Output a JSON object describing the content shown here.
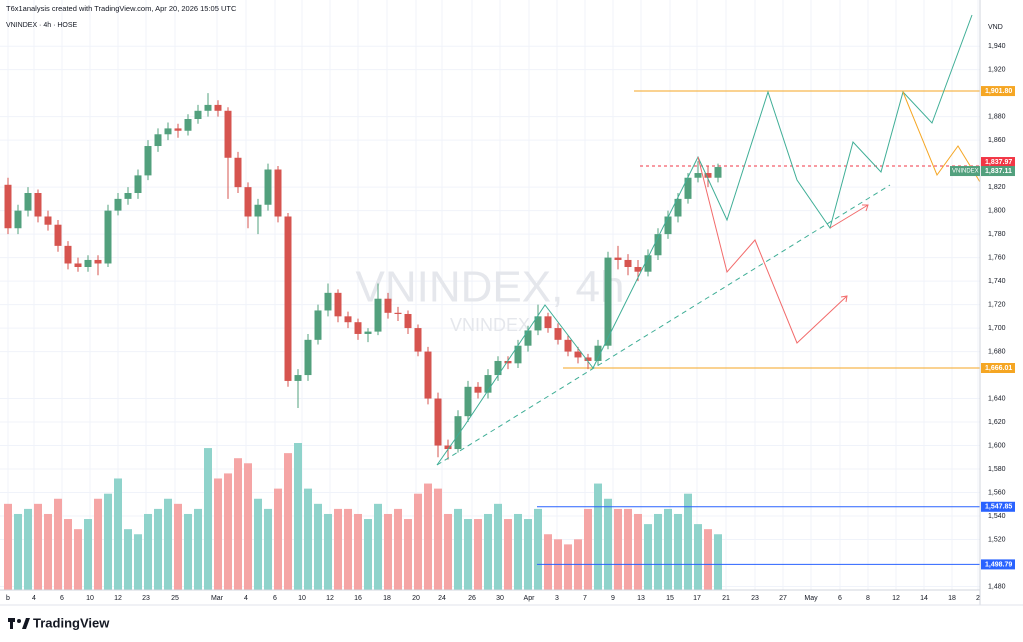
{
  "chart_data": {
    "type": "candlestick",
    "credit": "T6x1analysis created with TradingView.com, Apr 20, 2026 15:05 UTC",
    "title": "VNINDEX · 4h · HOSE",
    "watermark": "VNINDEX, 4h",
    "watermark_symbol": "VNINDEX",
    "y_unit": "VND",
    "brand": "TradingView",
    "up_color": "#52a07d",
    "down_color": "#d6544f",
    "volume_up_color": "#8fd3cb",
    "volume_down_color": "#f5a5a5",
    "grid": true,
    "xlim": [
      -0.8,
      97.2
    ],
    "ylim": [
      1477,
      1964
    ],
    "xticks": [
      {
        "value": 0,
        "label": "b"
      },
      {
        "value": 2.6,
        "label": "4"
      },
      {
        "value": 5.4,
        "label": "6"
      },
      {
        "value": 8.2,
        "label": "10"
      },
      {
        "value": 11,
        "label": "12"
      },
      {
        "value": 13.8,
        "label": "23"
      },
      {
        "value": 16.7,
        "label": "25"
      },
      {
        "value": 20.9,
        "label": "Mar"
      },
      {
        "value": 23.8,
        "label": "4"
      },
      {
        "value": 26.7,
        "label": "6"
      },
      {
        "value": 29.4,
        "label": "10"
      },
      {
        "value": 32.2,
        "label": "12"
      },
      {
        "value": 35,
        "label": "16"
      },
      {
        "value": 37.9,
        "label": "18"
      },
      {
        "value": 40.8,
        "label": "20"
      },
      {
        "value": 43.4,
        "label": "24"
      },
      {
        "value": 46.4,
        "label": "26"
      },
      {
        "value": 49.2,
        "label": "30"
      },
      {
        "value": 52.1,
        "label": "Apr"
      },
      {
        "value": 54.9,
        "label": "3"
      },
      {
        "value": 57.7,
        "label": "7"
      },
      {
        "value": 60.5,
        "label": "9"
      },
      {
        "value": 63.3,
        "label": "13"
      },
      {
        "value": 66.2,
        "label": "15"
      },
      {
        "value": 68.9,
        "label": "17"
      },
      {
        "value": 71.8,
        "label": "21"
      },
      {
        "value": 74.7,
        "label": "23"
      },
      {
        "value": 77.5,
        "label": "27"
      },
      {
        "value": 80.3,
        "label": "May"
      },
      {
        "value": 83.2,
        "label": "6"
      },
      {
        "value": 86,
        "label": "8"
      },
      {
        "value": 88.8,
        "label": "12"
      },
      {
        "value": 91.6,
        "label": "14"
      },
      {
        "value": 94.4,
        "label": "18"
      },
      {
        "value": 97,
        "label": "2"
      }
    ],
    "yticks": [
      {
        "value": 1480,
        "label": "1,480"
      },
      {
        "value": 1520,
        "label": "1,520"
      },
      {
        "value": 1540,
        "label": "1,540"
      },
      {
        "value": 1560,
        "label": "1,560"
      },
      {
        "value": 1580,
        "label": "1,580"
      },
      {
        "value": 1600,
        "label": "1,600"
      },
      {
        "value": 1620,
        "label": "1,620"
      },
      {
        "value": 1640,
        "label": "1,640"
      },
      {
        "value": 1680,
        "label": "1,680"
      },
      {
        "value": 1700,
        "label": "1,700"
      },
      {
        "value": 1720,
        "label": "1,720"
      },
      {
        "value": 1740,
        "label": "1,740"
      },
      {
        "value": 1760,
        "label": "1,760"
      },
      {
        "value": 1780,
        "label": "1,780"
      },
      {
        "value": 1800,
        "label": "1,800"
      },
      {
        "value": 1820,
        "label": "1,820"
      },
      {
        "value": 1860,
        "label": "1,860"
      },
      {
        "value": 1880,
        "label": "1,880"
      },
      {
        "value": 1920,
        "label": "1,920"
      },
      {
        "value": 1940,
        "label": "1,940"
      }
    ],
    "levels": [
      {
        "value": 1901.8,
        "label": "1,901.80",
        "color": "#f5a623"
      },
      {
        "value": 1837.97,
        "label": "1,837.97",
        "color": "#f23645"
      },
      {
        "value": 1837.11,
        "label": "1,837.11",
        "color": "#52a07d",
        "name": "VNINDEX"
      },
      {
        "value": 1666.01,
        "label": "1,666.01",
        "color": "#f5a623"
      },
      {
        "value": 1547.85,
        "label": "1,547.85",
        "color": "#2962ff"
      },
      {
        "value": 1498.79,
        "label": "1,498.79",
        "color": "#2962ff"
      }
    ],
    "ohlc": [
      [
        1822,
        1828,
        1780,
        1785
      ],
      [
        1785,
        1805,
        1780,
        1800
      ],
      [
        1800,
        1820,
        1795,
        1815
      ],
      [
        1815,
        1818,
        1790,
        1795
      ],
      [
        1795,
        1800,
        1783,
        1788
      ],
      [
        1788,
        1792,
        1765,
        1770
      ],
      [
        1770,
        1774,
        1750,
        1755
      ],
      [
        1755,
        1760,
        1748,
        1752
      ],
      [
        1752,
        1762,
        1748,
        1758
      ],
      [
        1758,
        1762,
        1745,
        1755
      ],
      [
        1755,
        1805,
        1752,
        1800
      ],
      [
        1800,
        1815,
        1796,
        1810
      ],
      [
        1810,
        1820,
        1805,
        1815
      ],
      [
        1815,
        1835,
        1810,
        1830
      ],
      [
        1830,
        1860,
        1826,
        1855
      ],
      [
        1855,
        1870,
        1850,
        1865
      ],
      [
        1865,
        1875,
        1860,
        1870
      ],
      [
        1870,
        1874,
        1862,
        1868
      ],
      [
        1868,
        1882,
        1864,
        1878
      ],
      [
        1878,
        1890,
        1874,
        1885
      ],
      [
        1885,
        1900,
        1880,
        1890
      ],
      [
        1890,
        1894,
        1880,
        1885
      ],
      [
        1885,
        1888,
        1810,
        1845
      ],
      [
        1845,
        1850,
        1815,
        1820
      ],
      [
        1820,
        1824,
        1785,
        1795
      ],
      [
        1795,
        1810,
        1780,
        1805
      ],
      [
        1805,
        1840,
        1800,
        1835
      ],
      [
        1835,
        1838,
        1790,
        1795
      ],
      [
        1795,
        1798,
        1650,
        1655
      ],
      [
        1655,
        1665,
        1632,
        1660
      ],
      [
        1660,
        1695,
        1655,
        1690
      ],
      [
        1690,
        1720,
        1686,
        1715
      ],
      [
        1715,
        1738,
        1710,
        1730
      ],
      [
        1730,
        1733,
        1705,
        1710
      ],
      [
        1710,
        1714,
        1700,
        1705
      ],
      [
        1705,
        1708,
        1690,
        1695
      ],
      [
        1695,
        1700,
        1688,
        1697
      ],
      [
        1697,
        1738,
        1694,
        1725
      ],
      [
        1725,
        1730,
        1708,
        1713
      ],
      [
        1713,
        1718,
        1706,
        1712
      ],
      [
        1712,
        1715,
        1695,
        1700
      ],
      [
        1700,
        1703,
        1676,
        1680
      ],
      [
        1680,
        1684,
        1635,
        1640
      ],
      [
        1640,
        1645,
        1590,
        1600
      ],
      [
        1600,
        1605,
        1588,
        1597
      ],
      [
        1597,
        1630,
        1594,
        1625
      ],
      [
        1625,
        1655,
        1620,
        1650
      ],
      [
        1650,
        1654,
        1640,
        1645
      ],
      [
        1645,
        1665,
        1640,
        1660
      ],
      [
        1660,
        1676,
        1655,
        1672
      ],
      [
        1672,
        1676,
        1665,
        1670
      ],
      [
        1670,
        1690,
        1666,
        1685
      ],
      [
        1685,
        1702,
        1680,
        1698
      ],
      [
        1698,
        1720,
        1694,
        1710
      ],
      [
        1710,
        1713,
        1696,
        1700
      ],
      [
        1700,
        1704,
        1686,
        1690
      ],
      [
        1690,
        1694,
        1676,
        1680
      ],
      [
        1680,
        1684,
        1670,
        1675
      ],
      [
        1675,
        1678,
        1665,
        1672
      ],
      [
        1672,
        1690,
        1668,
        1685
      ],
      [
        1685,
        1765,
        1682,
        1760
      ],
      [
        1760,
        1770,
        1750,
        1758
      ],
      [
        1758,
        1763,
        1745,
        1752
      ],
      [
        1752,
        1758,
        1740,
        1748
      ],
      [
        1748,
        1767,
        1744,
        1762
      ],
      [
        1762,
        1785,
        1758,
        1780
      ],
      [
        1780,
        1800,
        1776,
        1795
      ],
      [
        1795,
        1815,
        1790,
        1810
      ],
      [
        1810,
        1832,
        1806,
        1828
      ],
      [
        1828,
        1842,
        1824,
        1832
      ],
      [
        1832,
        1838,
        1820,
        1828
      ],
      [
        1828,
        1840,
        1824,
        1837.11
      ]
    ],
    "volume": [
      85,
      75,
      80,
      85,
      75,
      90,
      70,
      60,
      70,
      90,
      95,
      110,
      60,
      55,
      75,
      80,
      90,
      85,
      75,
      80,
      140,
      110,
      115,
      130,
      125,
      90,
      80,
      100,
      135,
      145,
      100,
      85,
      75,
      80,
      80,
      75,
      70,
      85,
      75,
      80,
      70,
      95,
      105,
      100,
      75,
      80,
      70,
      70,
      75,
      85,
      70,
      75,
      70,
      80,
      55,
      50,
      45,
      50,
      80,
      105,
      90,
      80,
      80,
      75,
      65,
      75,
      80,
      75,
      95,
      65,
      60,
      55
    ]
  }
}
